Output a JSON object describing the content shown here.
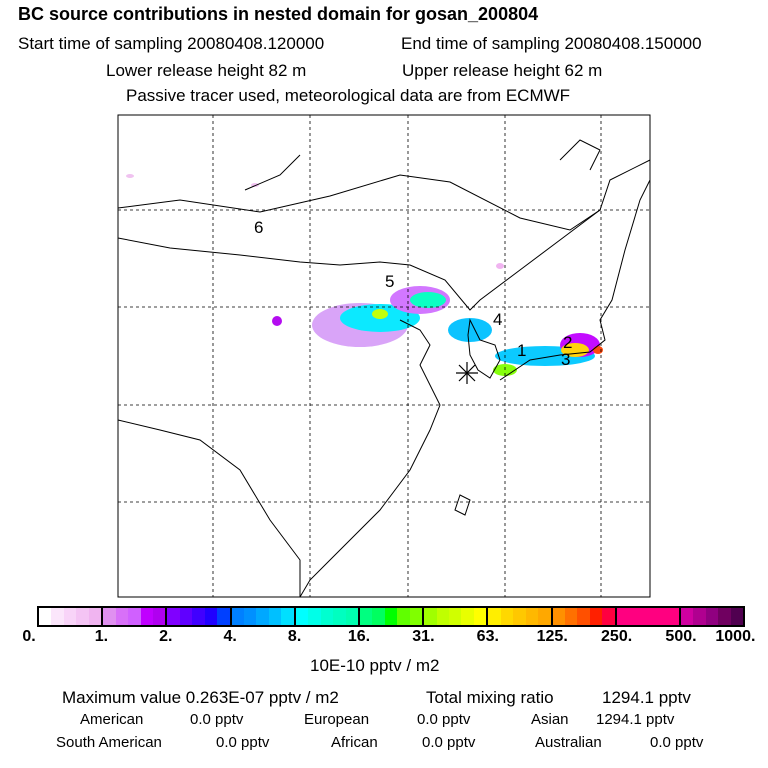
{
  "header": {
    "title": "BC  source contributions in nested domain for gosan_200804",
    "start": "Start time of sampling 20080408.120000",
    "end": "End time of sampling 20080408.150000",
    "lower": "Lower release height   82 m",
    "upper": "Upper release height   62 m",
    "note": "Passive tracer used, meteorological data are from ECMWF"
  },
  "map": {
    "labels": [
      "6",
      "5",
      "4",
      "1",
      "2",
      "3"
    ],
    "receptor_icon": "asterisk-receptor-marker"
  },
  "colorbar": {
    "ticks": [
      "0.",
      "1.",
      "2.",
      "4.",
      "8.",
      "16.",
      "31.",
      "63.",
      "125.",
      "250.",
      "500.",
      "1000."
    ],
    "unit": "10E-10 pptv / m2",
    "colors": [
      "#ffffff",
      "#fbe6fb",
      "#f8d4f8",
      "#f4c4f4",
      "#f0b4f0",
      "#e090f0",
      "#d870f8",
      "#d060ff",
      "#c000ff",
      "#b000f0",
      "#8000ff",
      "#6000ff",
      "#4000ff",
      "#2000ff",
      "#0040ff",
      "#0080ff",
      "#0090ff",
      "#00a8ff",
      "#00c0ff",
      "#00e0ff",
      "#00ffff",
      "#00ffe8",
      "#00ffd0",
      "#00ffc0",
      "#00ffb0",
      "#00ff80",
      "#00ff60",
      "#00ff00",
      "#60ff00",
      "#80ff00",
      "#a0ff00",
      "#c0ff00",
      "#d0ff00",
      "#e8ff00",
      "#ffff00",
      "#ffee00",
      "#ffd800",
      "#ffc800",
      "#ffb800",
      "#ffa800",
      "#ff9000",
      "#ff7000",
      "#ff5000",
      "#ff2000",
      "#ff0040",
      "#ff0080",
      "#ff0080",
      "#ff0080",
      "#ff0080",
      "#ff0080",
      "#d000a0",
      "#b00090",
      "#900080",
      "#700060",
      "#500050"
    ]
  },
  "summary": {
    "max": "Maximum value  0.263E-07 pptv / m2",
    "total_label": "Total mixing ratio",
    "total": "1294.1 pptv",
    "regions": [
      {
        "name": "American",
        "value": "0.0 pptv"
      },
      {
        "name": "European",
        "value": "0.0 pptv"
      },
      {
        "name": "Asian",
        "value": "1294.1 pptv"
      },
      {
        "name": "South American",
        "value": "0.0 pptv"
      },
      {
        "name": "African",
        "value": "0.0 pptv"
      },
      {
        "name": "Australian",
        "value": "0.0 pptv"
      }
    ]
  }
}
